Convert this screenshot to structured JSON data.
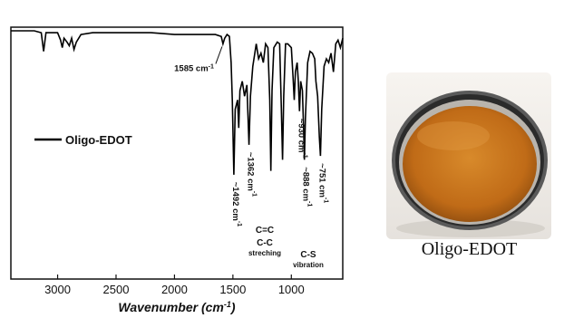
{
  "chart_data": {
    "type": "line",
    "xlabel_main": "Wavenumber (cm",
    "xlabel_sup": "-1",
    "xlabel_tail": ")",
    "xlim": [
      3400,
      560
    ],
    "x_axis_reversed": true,
    "ylabel": "",
    "yticks_shown": false,
    "xticks": [
      3000,
      2500,
      2000,
      1500,
      1000
    ],
    "tick_labels": [
      "3000",
      "2500",
      "2000",
      "1500",
      "1000"
    ],
    "legend": {
      "label": "Oligo-EDOT",
      "position": "middle-left"
    },
    "series": [
      {
        "name": "Oligo-EDOT",
        "color": "#000000",
        "points": [
          [
            3400,
            97
          ],
          [
            3200,
            97
          ],
          [
            3140,
            96
          ],
          [
            3120,
            86
          ],
          [
            3100,
            96
          ],
          [
            3050,
            96
          ],
          [
            3000,
            96
          ],
          [
            2975,
            92
          ],
          [
            2960,
            88
          ],
          [
            2945,
            93
          ],
          [
            2920,
            91
          ],
          [
            2900,
            89
          ],
          [
            2880,
            93
          ],
          [
            2860,
            87
          ],
          [
            2840,
            91
          ],
          [
            2800,
            95
          ],
          [
            2700,
            96
          ],
          [
            2500,
            96
          ],
          [
            2200,
            96
          ],
          [
            2000,
            95
          ],
          [
            1800,
            95
          ],
          [
            1650,
            95
          ],
          [
            1600,
            94
          ],
          [
            1585,
            90
          ],
          [
            1570,
            93
          ],
          [
            1550,
            95
          ],
          [
            1530,
            94
          ],
          [
            1515,
            80
          ],
          [
            1505,
            60
          ],
          [
            1492,
            20
          ],
          [
            1480,
            55
          ],
          [
            1460,
            60
          ],
          [
            1450,
            45
          ],
          [
            1440,
            65
          ],
          [
            1420,
            70
          ],
          [
            1400,
            62
          ],
          [
            1380,
            68
          ],
          [
            1362,
            36
          ],
          [
            1350,
            62
          ],
          [
            1330,
            78
          ],
          [
            1300,
            90
          ],
          [
            1280,
            82
          ],
          [
            1260,
            85
          ],
          [
            1240,
            80
          ],
          [
            1220,
            90
          ],
          [
            1200,
            88
          ],
          [
            1185,
            60
          ],
          [
            1175,
            22
          ],
          [
            1165,
            65
          ],
          [
            1150,
            88
          ],
          [
            1120,
            91
          ],
          [
            1100,
            90
          ],
          [
            1085,
            55
          ],
          [
            1075,
            28
          ],
          [
            1065,
            62
          ],
          [
            1050,
            90
          ],
          [
            1030,
            90
          ],
          [
            1000,
            88
          ],
          [
            985,
            72
          ],
          [
            975,
            60
          ],
          [
            965,
            75
          ],
          [
            950,
            80
          ],
          [
            940,
            70
          ],
          [
            930,
            54
          ],
          [
            920,
            70
          ],
          [
            905,
            65
          ],
          [
            895,
            45
          ],
          [
            888,
            28
          ],
          [
            880,
            50
          ],
          [
            860,
            80
          ],
          [
            840,
            86
          ],
          [
            820,
            85
          ],
          [
            800,
            82
          ],
          [
            790,
            70
          ],
          [
            775,
            62
          ],
          [
            760,
            40
          ],
          [
            751,
            30
          ],
          [
            740,
            55
          ],
          [
            720,
            78
          ],
          [
            700,
            82
          ],
          [
            680,
            80
          ],
          [
            660,
            85
          ],
          [
            640,
            75
          ],
          [
            620,
            90
          ],
          [
            600,
            92
          ],
          [
            580,
            88
          ],
          [
            560,
            93
          ]
        ]
      }
    ],
    "annotations": [
      {
        "id": "a1585",
        "x": 1585,
        "y": 90,
        "text": "1585 cm",
        "sup": "-1"
      },
      {
        "id": "a1492",
        "x": 1492,
        "y": 20,
        "text": "1492 cm",
        "sup": "-1"
      },
      {
        "id": "a1362",
        "x": 1362,
        "y": 36,
        "text": "1362 cm",
        "sup": "-1"
      },
      {
        "id": "a930",
        "x": 930,
        "y": 54,
        "text": "930 cm",
        "sup": "-1"
      },
      {
        "id": "a888",
        "x": 888,
        "y": 28,
        "text": "888 cm",
        "sup": "-1"
      },
      {
        "id": "a751",
        "x": 751,
        "y": 30,
        "text": "751 cm",
        "sup": "-1"
      }
    ],
    "group_labels": [
      {
        "lines": [
          "C=C",
          "C-C"
        ],
        "sub": "streching"
      },
      {
        "lines": [
          "C-S"
        ],
        "sub": "vibration"
      }
    ]
  },
  "photo": {
    "caption": "Oligo-EDOT",
    "liquid_color": "#c9731c",
    "rim_color": "#3a3a3a"
  }
}
